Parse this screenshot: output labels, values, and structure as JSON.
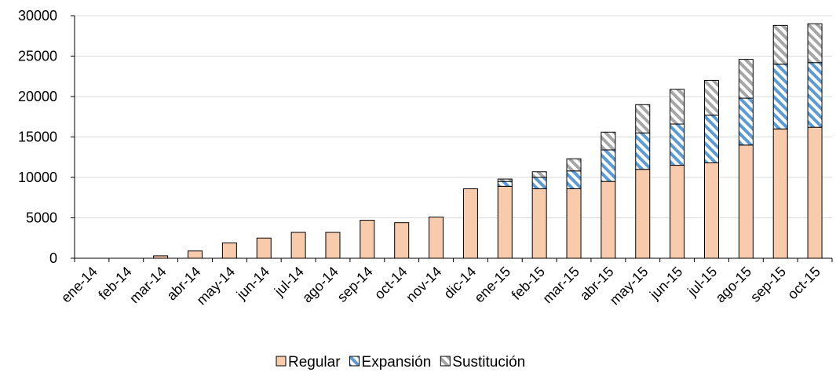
{
  "chart_data": {
    "type": "bar",
    "stacked": true,
    "title": "",
    "xlabel": "",
    "ylabel": "",
    "ylim": [
      0,
      30000
    ],
    "yticks": [
      0,
      5000,
      10000,
      15000,
      20000,
      25000,
      30000
    ],
    "grid": "horizontal",
    "legend_position": "bottom",
    "categories": [
      "ene-14",
      "feb-14",
      "mar-14",
      "abr-14",
      "may-14",
      "jun-14",
      "jul-14",
      "ago-14",
      "sep-14",
      "oct-14",
      "nov-14",
      "dic-14",
      "ene-15",
      "feb-15",
      "mar-15",
      "abr-15",
      "may-15",
      "jun-15",
      "jul-15",
      "ago-15",
      "sep-15",
      "oct-15"
    ],
    "series": [
      {
        "name": "Regular",
        "color": "#f8cbad",
        "pattern": "solid",
        "values": [
          0,
          0,
          300,
          900,
          1900,
          2500,
          3200,
          3200,
          4700,
          4400,
          5100,
          8600,
          8900,
          8600,
          8600,
          9500,
          11000,
          11500,
          11800,
          14000,
          16000,
          16200
        ]
      },
      {
        "name": "Expansión",
        "color": "#5b9bd5",
        "pattern": "diagonal-stripes",
        "values": [
          0,
          0,
          0,
          0,
          0,
          0,
          0,
          0,
          0,
          0,
          0,
          0,
          600,
          1400,
          2200,
          3900,
          4500,
          5100,
          5900,
          5800,
          8000,
          8000
        ]
      },
      {
        "name": "Sustitución",
        "color": "#a6a6a6",
        "pattern": "diagonal-stripes",
        "values": [
          0,
          0,
          0,
          0,
          0,
          0,
          0,
          0,
          0,
          0,
          0,
          0,
          300,
          700,
          1500,
          2200,
          3500,
          4300,
          4300,
          4800,
          4800,
          4800
        ]
      }
    ]
  }
}
